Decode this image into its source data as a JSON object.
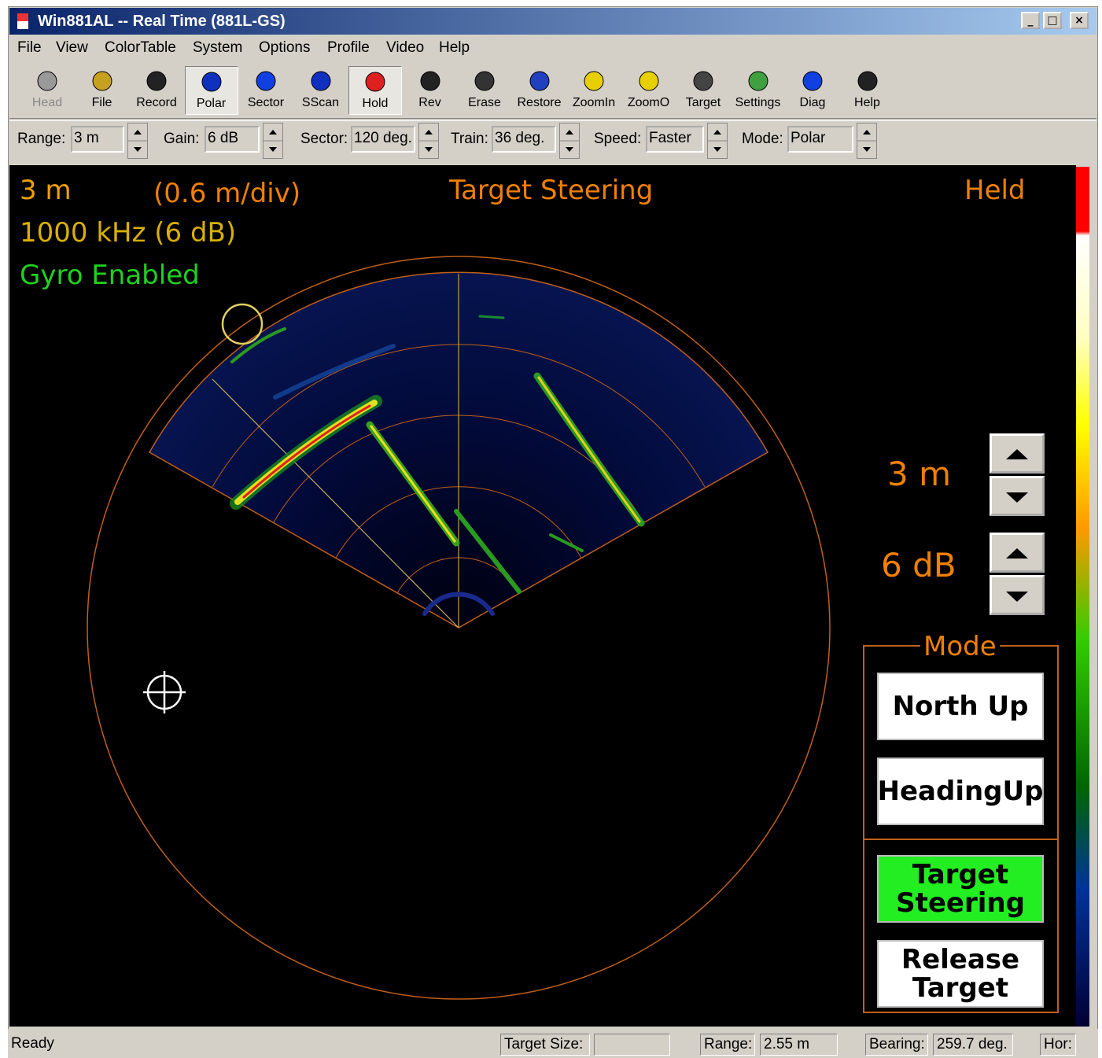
{
  "window": {
    "title": "Win881AL -- Real Time (881L-GS)"
  },
  "menu": [
    "File",
    "View",
    "ColorTable",
    "System",
    "Options",
    "Profile",
    "Video",
    "Help"
  ],
  "toolbar": [
    "Head",
    "File",
    "Record",
    "Polar",
    "Sector",
    "SScan",
    "Hold",
    "Rev",
    "Erase",
    "Restore",
    "ZoomIn",
    "ZoomO",
    "Target",
    "Settings",
    "Diag",
    "Help"
  ],
  "controls": [
    {
      "label": "Range:",
      "value": "3 m"
    },
    {
      "label": "Gain:",
      "value": "6 dB"
    },
    {
      "label": "Sector:",
      "value": "120 deg."
    },
    {
      "label": "Train:",
      "value": "36 deg."
    },
    {
      "label": "Speed:",
      "value": "Faster"
    },
    {
      "label": "Mode:",
      "value": "Polar"
    }
  ],
  "display": {
    "range": "3 m",
    "scale": "(0.6 m/div)",
    "title": "Target Steering",
    "state": "Held",
    "frequency": "1000 kHz (6 dB)",
    "gyro": "Gyro Enabled",
    "range_control": "3 m",
    "gain_control": "6 dB",
    "mode_group": "Mode",
    "buttons": [
      "North Up",
      "HeadingUp",
      "Target Steering",
      "Release Target"
    ]
  },
  "status_bar": {
    "message": "Ready",
    "fields": [
      {
        "label": "Target Size:"
      },
      {
        "label": "Range:",
        "value": "2.55 m"
      },
      {
        "label": "Bearing:",
        "value": "259.7 deg."
      },
      {
        "label": "Hor:"
      }
    ]
  }
}
